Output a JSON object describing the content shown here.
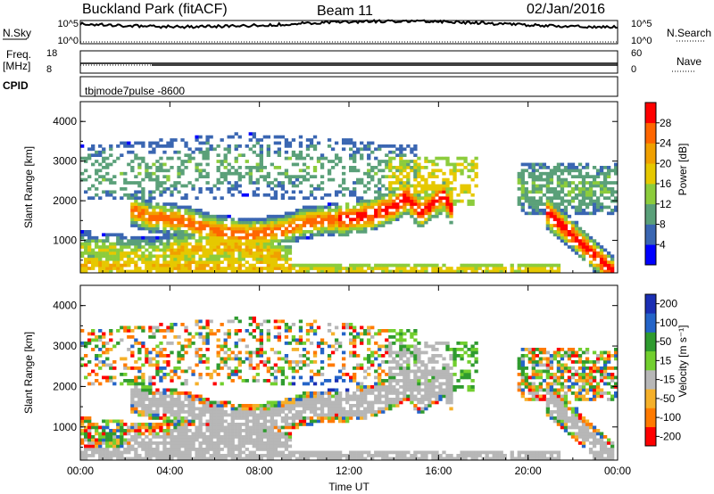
{
  "header": {
    "station": "Buckland Park (fitACF)",
    "beam": "Beam 11",
    "date": "02/Jan/2016"
  },
  "top_panels": {
    "nsky_label": "N.Sky",
    "nsky_ticks": [
      "10^5",
      "10^0"
    ],
    "nsearch_label": "N.Search",
    "nsearch_ticks": [
      "10^5",
      "10^0"
    ],
    "freq_label": "Freq.",
    "freq_unit": "[MHz]",
    "freq_ticks": [
      "18",
      "8"
    ],
    "nave_label": "Nave",
    "nave_ticks": [
      "60",
      "0"
    ],
    "cpid_label": "CPID",
    "cpid_value": "tbjmode7pulse  -8600"
  },
  "colors": {
    "power_scale": [
      "#0000ff",
      "#3a66b2",
      "#5aa079",
      "#8ccc3c",
      "#e6c800",
      "#f0a000",
      "#ff6600",
      "#ff0000"
    ],
    "velocity_scale": [
      "#ff0000",
      "#ff7a00",
      "#f5b02a",
      "#b7b7b7",
      "#72cf2f",
      "#2f9b2f",
      "#2464c8",
      "#1b2fb4"
    ],
    "ground_scatter": "#a0a0a0"
  },
  "chart_data": [
    {
      "type": "heatmap",
      "panel": "power",
      "ylabel": "Slant Range [km]",
      "colorbar_label": "Power [dB]",
      "colorbar_ticks": [
        "28",
        "24",
        "20",
        "16",
        "12",
        "8",
        "4"
      ],
      "x_ticks": [
        "00:00",
        "04:00",
        "08:00",
        "12:00",
        "16:00",
        "20:00",
        "00:00"
      ],
      "y_ticks": [
        "4000",
        "3000",
        "2000",
        "1000"
      ],
      "xlim_hours": [
        0,
        24
      ],
      "ylim_km": [
        180,
        4500
      ],
      "zlim_db": [
        0,
        32
      ]
    },
    {
      "type": "heatmap",
      "panel": "velocity",
      "ylabel": "Slant Range [km]",
      "colorbar_label": "Velocity [m s⁻¹]",
      "colorbar_ticks": [
        "200",
        "100",
        "50",
        "15",
        "-15",
        "-50",
        "-100",
        "-200"
      ],
      "x_ticks": [
        "00:00",
        "04:00",
        "08:00",
        "12:00",
        "16:00",
        "20:00",
        "00:00"
      ],
      "y_ticks": [
        "4000",
        "3000",
        "2000",
        "1000"
      ],
      "xlabel": "Time UT",
      "xlim_hours": [
        0,
        24
      ],
      "ylim_km": [
        180,
        4500
      ],
      "zlim_ms": [
        -250,
        250
      ]
    }
  ]
}
